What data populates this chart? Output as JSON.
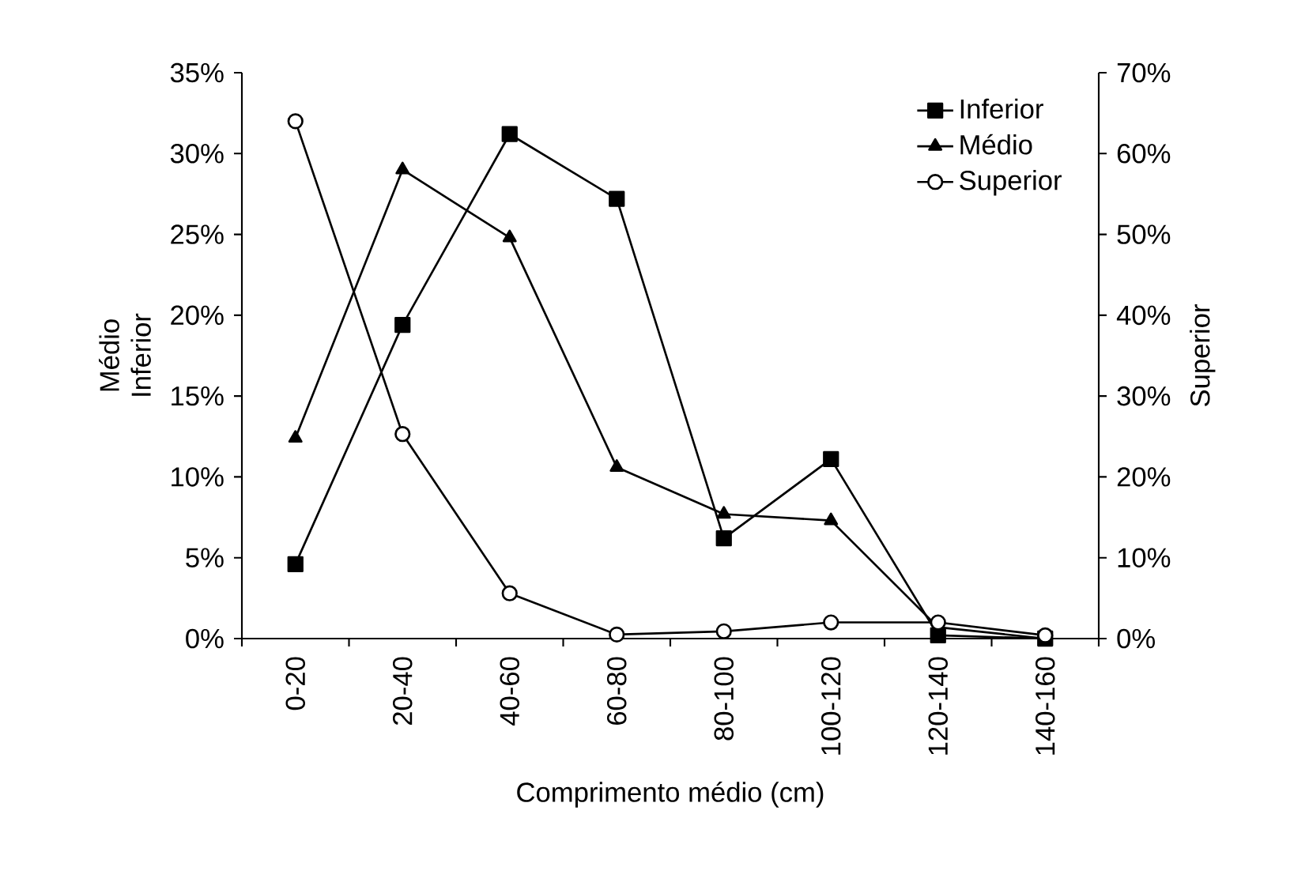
{
  "chart_data": {
    "type": "line",
    "xlabel": "Comprimento médio (cm)",
    "ylabel": "Médio Inferior",
    "y2label": "Superior",
    "categories": [
      "0-20",
      "20-40",
      "40-60",
      "60-80",
      "80-100",
      "100-120",
      "120-140",
      "140-160"
    ],
    "series": [
      {
        "name": "Inferior",
        "color": "#000000",
        "marker": "square",
        "values": [
          4.6,
          19.4,
          31.2,
          27.2,
          6.2,
          11.1,
          0.2,
          0
        ]
      },
      {
        "name": "Médio",
        "color": "#000000",
        "marker": "triangle",
        "values": [
          12.4,
          29.0,
          24.8,
          10.6,
          7.7,
          7.3,
          0.7,
          0
        ]
      },
      {
        "name": "Superior",
        "color": "#000000",
        "marker": "circle",
        "axis": "y2",
        "values": [
          64,
          25.3,
          5.6,
          0.5,
          0.9,
          2.0,
          2.0,
          0.4
        ]
      }
    ],
    "ylim": [
      0,
      35
    ],
    "yticks": [
      {
        "value": 0,
        "label": "0%"
      },
      {
        "value": 5,
        "label": "5%"
      },
      {
        "value": 10,
        "label": "10%"
      },
      {
        "value": 15,
        "label": "15%"
      },
      {
        "value": 20,
        "label": "20%"
      },
      {
        "value": 25,
        "label": "25%"
      },
      {
        "value": 30,
        "label": "30%"
      },
      {
        "value": 35,
        "label": "35%"
      }
    ],
    "y2lim": [
      0,
      70
    ],
    "y2ticks": [
      {
        "value": 0,
        "label": "0%"
      },
      {
        "value": 10,
        "label": "10%"
      },
      {
        "value": 20,
        "label": "20%"
      },
      {
        "value": 30,
        "label": "30%"
      },
      {
        "value": 40,
        "label": "40%"
      },
      {
        "value": 50,
        "label": "50%"
      },
      {
        "value": 60,
        "label": "60%"
      },
      {
        "value": 70,
        "label": "70%"
      }
    ],
    "grid": false,
    "legend": "top right",
    "line_style": "solid"
  }
}
